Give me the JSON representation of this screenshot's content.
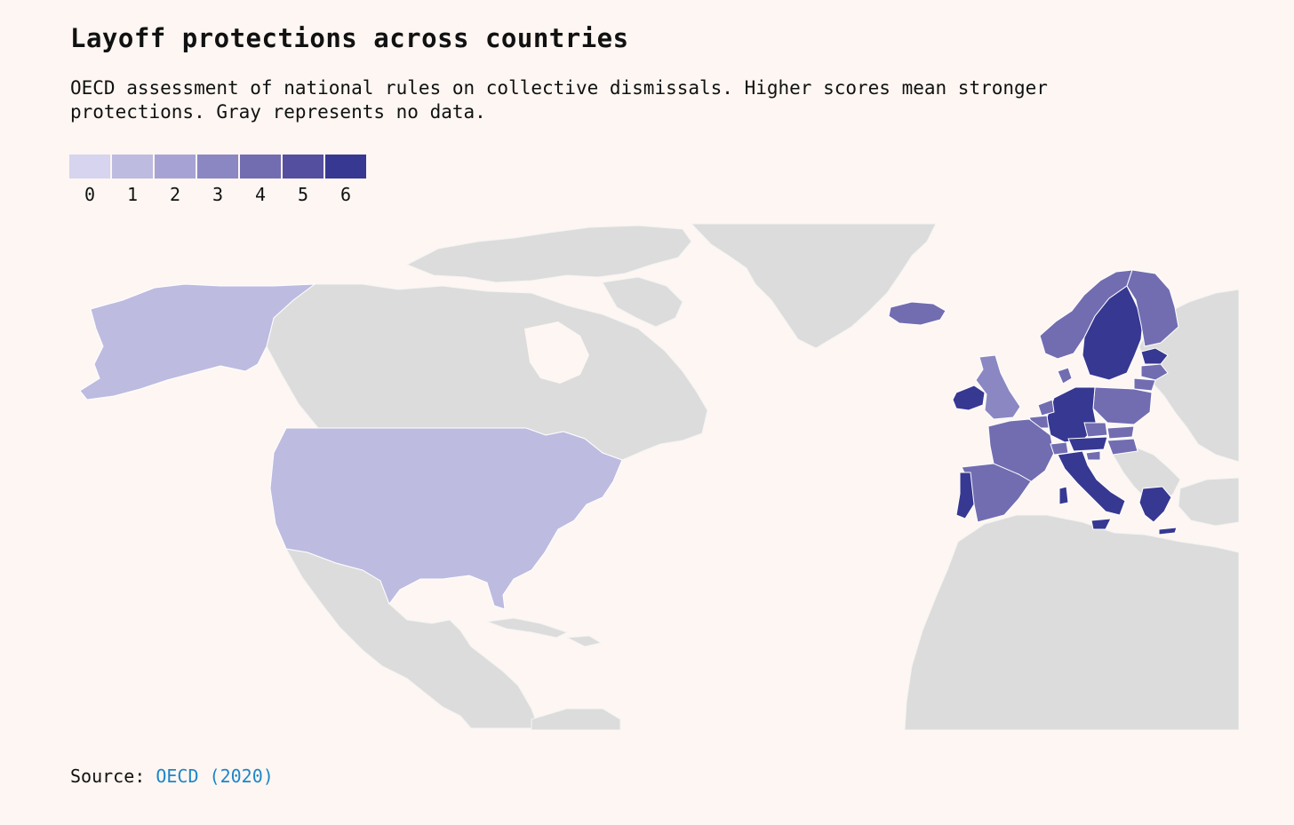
{
  "header": {
    "title": "Layoff protections across countries",
    "subtitle": "OECD assessment of national rules on collective dismissals. Higher scores mean stronger protections. Gray represents no data."
  },
  "legend": {
    "items": [
      {
        "label": "0",
        "color": "#d6d4ee"
      },
      {
        "label": "1",
        "color": "#bdbbe0"
      },
      {
        "label": "2",
        "color": "#a6a3d4"
      },
      {
        "label": "3",
        "color": "#8b87c3"
      },
      {
        "label": "4",
        "color": "#726db1"
      },
      {
        "label": "5",
        "color": "#554f9f"
      },
      {
        "label": "6",
        "color": "#373892"
      }
    ]
  },
  "map": {
    "no_data_color": "#dcdcdc",
    "countries": [
      {
        "id": "alaska",
        "score": 1
      },
      {
        "id": "united-states",
        "score": 1
      },
      {
        "id": "iceland",
        "score": 4
      },
      {
        "id": "ireland",
        "score": 6
      },
      {
        "id": "united-kingdom",
        "score": 3
      },
      {
        "id": "norway",
        "score": 4
      },
      {
        "id": "sweden",
        "score": 6
      },
      {
        "id": "finland",
        "score": 4
      },
      {
        "id": "estonia",
        "score": 6
      },
      {
        "id": "latvia",
        "score": 4
      },
      {
        "id": "lithuania",
        "score": 4
      },
      {
        "id": "poland",
        "score": 4
      },
      {
        "id": "germany",
        "score": 6
      },
      {
        "id": "netherlands",
        "score": 4
      },
      {
        "id": "belgium",
        "score": 4
      },
      {
        "id": "france",
        "score": 4
      },
      {
        "id": "spain",
        "score": 4
      },
      {
        "id": "portugal",
        "score": 6
      },
      {
        "id": "czechia",
        "score": 4
      },
      {
        "id": "slovakia",
        "score": 4
      },
      {
        "id": "austria",
        "score": 6
      },
      {
        "id": "hungary",
        "score": 4
      },
      {
        "id": "switzerland",
        "score": 4
      },
      {
        "id": "slovenia",
        "score": 4
      },
      {
        "id": "italy",
        "score": 6
      },
      {
        "id": "greece",
        "score": 6
      },
      {
        "id": "denmark",
        "score": 4
      }
    ]
  },
  "footer": {
    "source_label": "Source:",
    "source_link": "OECD (2020)"
  }
}
